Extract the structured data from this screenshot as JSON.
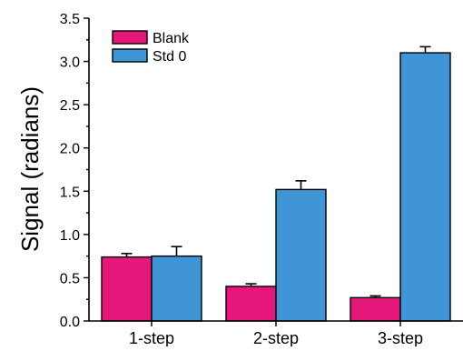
{
  "chart_data": {
    "type": "bar",
    "title": "",
    "xlabel": "",
    "ylabel": "Signal (radians)",
    "categories": [
      "1-step",
      "2-step",
      "3-step"
    ],
    "ylim": [
      0.0,
      3.5
    ],
    "yticks": [
      "0.0",
      "0.5",
      "1.0",
      "1.5",
      "2.0",
      "2.5",
      "3.0",
      "3.5"
    ],
    "legend_position": "top-left",
    "grid": false,
    "series": [
      {
        "name": "Blank",
        "color": "#E5177B",
        "values": [
          0.74,
          0.4,
          0.27
        ],
        "errors": [
          0.04,
          0.03,
          0.02
        ]
      },
      {
        "name": "Std 0",
        "color": "#3F95D6",
        "values": [
          0.75,
          1.52,
          3.1
        ],
        "errors": [
          0.11,
          0.1,
          0.07
        ]
      }
    ]
  }
}
